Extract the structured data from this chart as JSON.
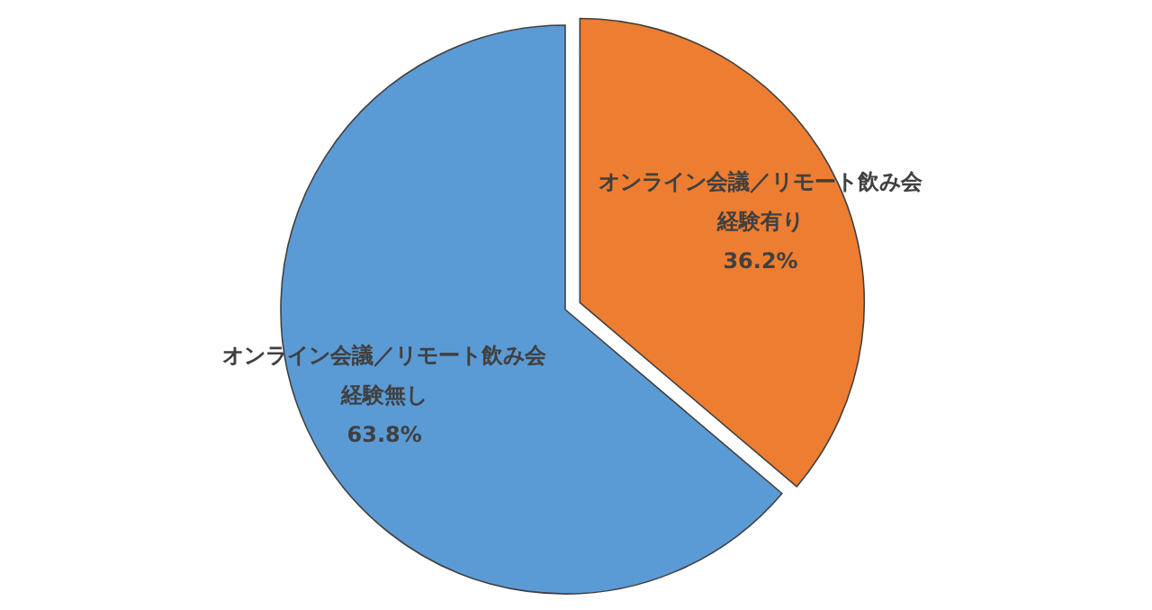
{
  "chart_data": {
    "type": "pie",
    "categories": [
      "オンライン会議／リモート飲み会経験有り",
      "オンライン会議／リモート飲み会経験無し"
    ],
    "values": [
      36.2,
      63.8
    ],
    "colors": [
      "#ed7d31",
      "#5b9bd5"
    ],
    "value_labels": [
      "36.2%",
      "63.8%"
    ]
  }
}
